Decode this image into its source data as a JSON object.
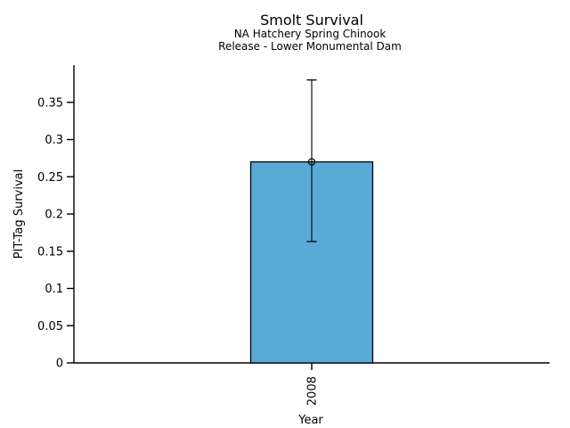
{
  "chart_data": {
    "type": "bar",
    "title": "Smolt Survival",
    "subtitle_lines": [
      "NA Hatchery Spring Chinook",
      "Release - Lower Monumental Dam"
    ],
    "xlabel": "Year",
    "ylabel": "PIT-Tag Survival",
    "categories": [
      "2008"
    ],
    "values": [
      0.27
    ],
    "error_bars": {
      "lower": [
        0.163
      ],
      "upper": [
        0.38
      ]
    },
    "marker": "open-circle",
    "ylim": [
      0,
      0.4
    ],
    "yticks": [
      0,
      0.05,
      0.1,
      0.15,
      0.2,
      0.25,
      0.3,
      0.35
    ],
    "ytick_labels": [
      "0",
      "0.05",
      "0.1",
      "0.15",
      "0.2",
      "0.25",
      "0.3",
      "0.35"
    ],
    "grid": false,
    "legend": "none",
    "axis_style": "L-shaped open axes, ticks outward, x tick labels rotated 90",
    "colors": {
      "background": "#ffffff",
      "bar_fill": "#5aaad6",
      "bar_edge": "#000000",
      "error_bar": "#000000",
      "axis": "#000000",
      "text": "#000000"
    }
  }
}
